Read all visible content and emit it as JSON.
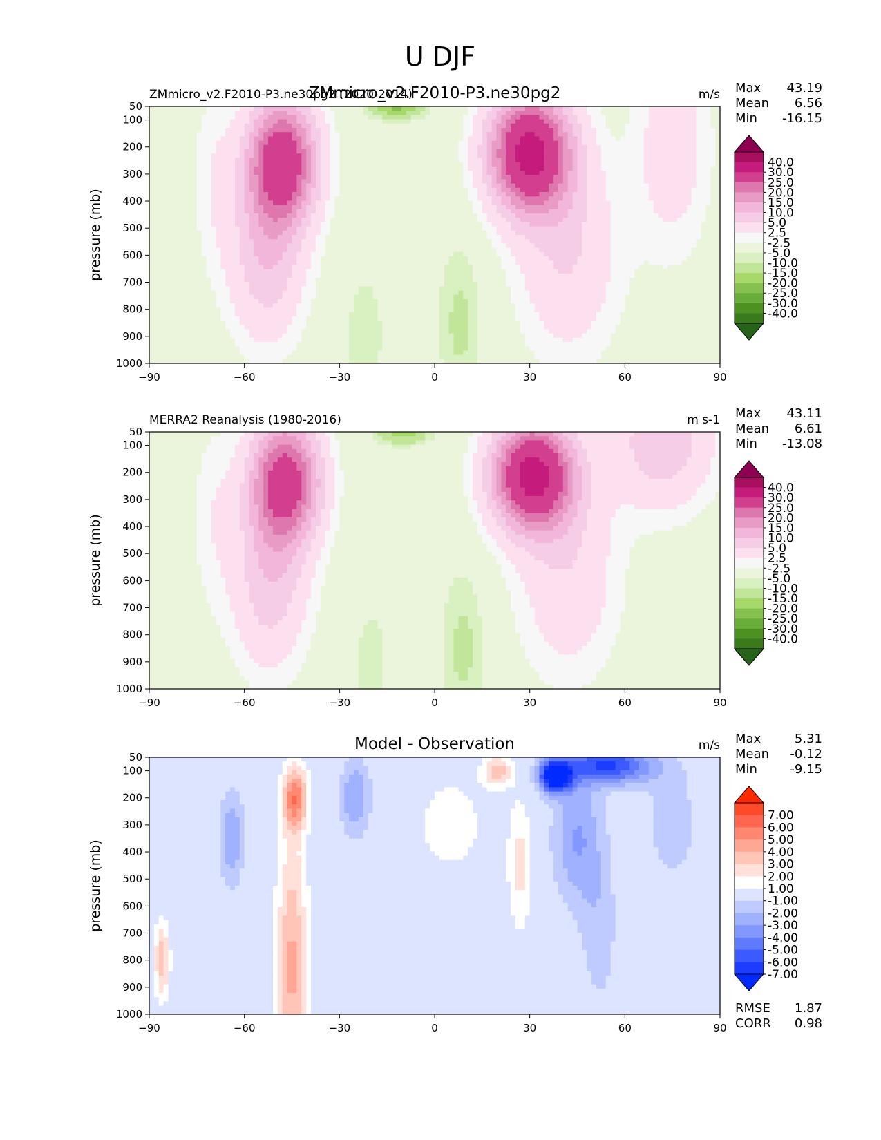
{
  "figure_title": "U DJF",
  "axis_common": {
    "xticks": [
      -90,
      -60,
      -30,
      0,
      30,
      60,
      90
    ],
    "xtick_labels": [
      "−90",
      "−60",
      "−30",
      "0",
      "30",
      "60",
      "90"
    ],
    "yticks": [
      50,
      100,
      200,
      300,
      400,
      500,
      600,
      700,
      800,
      900,
      1000
    ],
    "ylabel": "pressure (mb)"
  },
  "panels": [
    {
      "left_title": "ZMmicro_v2.F2010-P3.ne30pg2 (2020-2014)",
      "center_title": "ZMmicro_v2.F2010-P3.ne30pg2",
      "units": "m/s",
      "stats": [
        {
          "label": "Max",
          "value": "43.19"
        },
        {
          "label": "Mean",
          "value": "6.56"
        },
        {
          "label": "Min",
          "value": "-16.15"
        }
      ],
      "colorbar_labels": [
        "40.0",
        "30.0",
        "25.0",
        "20.0",
        "15.0",
        "10.0",
        "5.0",
        "2.5",
        "-2.5",
        "-5.0",
        "-10.0",
        "-15.0",
        "-20.0",
        "-25.0",
        "-30.0",
        "-40.0"
      ],
      "colorbar_colors": [
        "#8e0152",
        "#a8105f",
        "#c51b7d",
        "#d33f8f",
        "#de77ae",
        "#e89cc5",
        "#f1b6da",
        "#f6cde6",
        "#fde0ef",
        "#f7f7f7",
        "#eaf5dc",
        "#d9f0c0",
        "#c2e699",
        "#a6d96a",
        "#86c14f",
        "#6aad3a",
        "#4d9221",
        "#3a7a1b",
        "#276419"
      ],
      "contour_levels": [
        -40,
        -30,
        -25,
        -20,
        -15,
        -10,
        -5,
        -2.5,
        2.5,
        5,
        10,
        15,
        20,
        25,
        30,
        40
      ],
      "features": [
        {
          "lat": -48,
          "p": 250,
          "value": 36,
          "lat_width": 11,
          "p_width": 230
        },
        {
          "lat": -53,
          "p": 600,
          "value": 14,
          "lat_width": 12,
          "p_width": 320
        },
        {
          "lat": 30,
          "p": 220,
          "value": 43.19,
          "lat_width": 13,
          "p_width": 220
        },
        {
          "lat": 42,
          "p": 600,
          "value": 10,
          "lat_width": 16,
          "p_width": 380
        },
        {
          "lat": -70,
          "p": 300,
          "value": 4,
          "lat_width": 7,
          "p_width": 350
        },
        {
          "lat": 75,
          "p": 200,
          "value": 8,
          "lat_width": 12,
          "p_width": 400
        },
        {
          "lat": 8,
          "p": 850,
          "value": -6,
          "lat_width": 7,
          "p_width": 300
        },
        {
          "lat": -22,
          "p": 900,
          "value": -5,
          "lat_width": 6,
          "p_width": 230
        },
        {
          "lat": -12,
          "p": 50,
          "value": -16.15,
          "lat_width": 8,
          "p_width": 45
        }
      ]
    },
    {
      "left_title": "MERRA2 Reanalysis (1980-2016)",
      "center_title": "",
      "units": "m s-1",
      "stats": [
        {
          "label": "Max",
          "value": "43.11"
        },
        {
          "label": "Mean",
          "value": "6.61"
        },
        {
          "label": "Min",
          "value": "-13.08"
        }
      ],
      "colorbar_labels": [
        "40.0",
        "30.0",
        "25.0",
        "20.0",
        "15.0",
        "10.0",
        "5.0",
        "2.5",
        "-2.5",
        "-5.0",
        "-10.0",
        "-15.0",
        "-20.0",
        "-25.0",
        "-30.0",
        "-40.0"
      ],
      "colorbar_colors": [
        "#8e0152",
        "#a8105f",
        "#c51b7d",
        "#d33f8f",
        "#de77ae",
        "#e89cc5",
        "#f1b6da",
        "#f6cde6",
        "#fde0ef",
        "#f7f7f7",
        "#eaf5dc",
        "#d9f0c0",
        "#c2e699",
        "#a6d96a",
        "#86c14f",
        "#6aad3a",
        "#4d9221",
        "#3a7a1b",
        "#276419"
      ],
      "contour_levels": [
        -40,
        -30,
        -25,
        -20,
        -15,
        -10,
        -5,
        -2.5,
        2.5,
        5,
        10,
        15,
        20,
        25,
        30,
        40
      ],
      "features": [
        {
          "lat": -47,
          "p": 230,
          "value": 34,
          "lat_width": 11,
          "p_width": 230
        },
        {
          "lat": -52,
          "p": 600,
          "value": 13,
          "lat_width": 12,
          "p_width": 330
        },
        {
          "lat": 31,
          "p": 210,
          "value": 43.11,
          "lat_width": 13,
          "p_width": 200
        },
        {
          "lat": 42,
          "p": 580,
          "value": 9,
          "lat_width": 16,
          "p_width": 380
        },
        {
          "lat": 72,
          "p": 80,
          "value": 14,
          "lat_width": 16,
          "p_width": 250
        },
        {
          "lat": -70,
          "p": 350,
          "value": 4,
          "lat_width": 7,
          "p_width": 350
        },
        {
          "lat": 9,
          "p": 850,
          "value": -6,
          "lat_width": 7,
          "p_width": 300
        },
        {
          "lat": -20,
          "p": 900,
          "value": -4,
          "lat_width": 6,
          "p_width": 230
        },
        {
          "lat": -10,
          "p": 50,
          "value": -13.08,
          "lat_width": 8,
          "p_width": 45
        }
      ]
    },
    {
      "left_title": "",
      "center_title": "Model - Observation",
      "units": "m/s",
      "stats": [
        {
          "label": "Max",
          "value": "5.31"
        },
        {
          "label": "Mean",
          "value": "-0.12"
        },
        {
          "label": "Min",
          "value": "-9.15"
        }
      ],
      "bottom_stats": [
        {
          "label": "RMSE",
          "value": "1.87"
        },
        {
          "label": "CORR",
          "value": "0.98"
        }
      ],
      "colorbar_labels": [
        "7.00",
        "6.00",
        "5.00",
        "4.00",
        "3.00",
        "2.00",
        "1.00",
        "-1.00",
        "-2.00",
        "-3.00",
        "-4.00",
        "-5.00",
        "-6.00",
        "-7.00"
      ],
      "colorbar_colors": [
        "#ff2a00",
        "#ff4a2a",
        "#ff6650",
        "#ff8870",
        "#ffa795",
        "#ffc6b8",
        "#ffe1da",
        "#ffffff",
        "#dde4ff",
        "#bfcbff",
        "#a0b1ff",
        "#8297ff",
        "#5f79ff",
        "#3b5aff",
        "#1c3dff",
        "#002aff"
      ],
      "contour_levels": [
        -7,
        -6,
        -5,
        -4,
        -3,
        -2,
        -1,
        1,
        2,
        3,
        4,
        5,
        6,
        7
      ],
      "features": [
        {
          "lat": -44,
          "p": 200,
          "value": 5.31,
          "lat_width": 4,
          "p_width": 120
        },
        {
          "lat": -45,
          "p": 650,
          "value": 3.2,
          "lat_width": 5,
          "p_width": 380
        },
        {
          "lat": -45,
          "p": 950,
          "value": 2.2,
          "lat_width": 6,
          "p_width": 250
        },
        {
          "lat": 38,
          "p": 120,
          "value": -9.15,
          "lat_width": 5,
          "p_width": 60
        },
        {
          "lat": 55,
          "p": 80,
          "value": -6,
          "lat_width": 14,
          "p_width": 70
        },
        {
          "lat": 45,
          "p": 350,
          "value": -3,
          "lat_width": 8,
          "p_width": 250
        },
        {
          "lat": 52,
          "p": 700,
          "value": -1.6,
          "lat_width": 6,
          "p_width": 300
        },
        {
          "lat": 75,
          "p": 300,
          "value": -1.5,
          "lat_width": 10,
          "p_width": 250
        },
        {
          "lat": -64,
          "p": 350,
          "value": -3,
          "lat_width": 4,
          "p_width": 180
        },
        {
          "lat": -25,
          "p": 200,
          "value": -3,
          "lat_width": 5,
          "p_width": 150
        },
        {
          "lat": 5,
          "p": 300,
          "value": 1.6,
          "lat_width": 12,
          "p_width": 200
        },
        {
          "lat": 20,
          "p": 100,
          "value": 3.4,
          "lat_width": 5,
          "p_width": 60
        },
        {
          "lat": 27,
          "p": 450,
          "value": 2.4,
          "lat_width": 4,
          "p_width": 250
        },
        {
          "lat": -86,
          "p": 800,
          "value": 3.6,
          "lat_width": 2.5,
          "p_width": 150
        }
      ]
    }
  ]
}
